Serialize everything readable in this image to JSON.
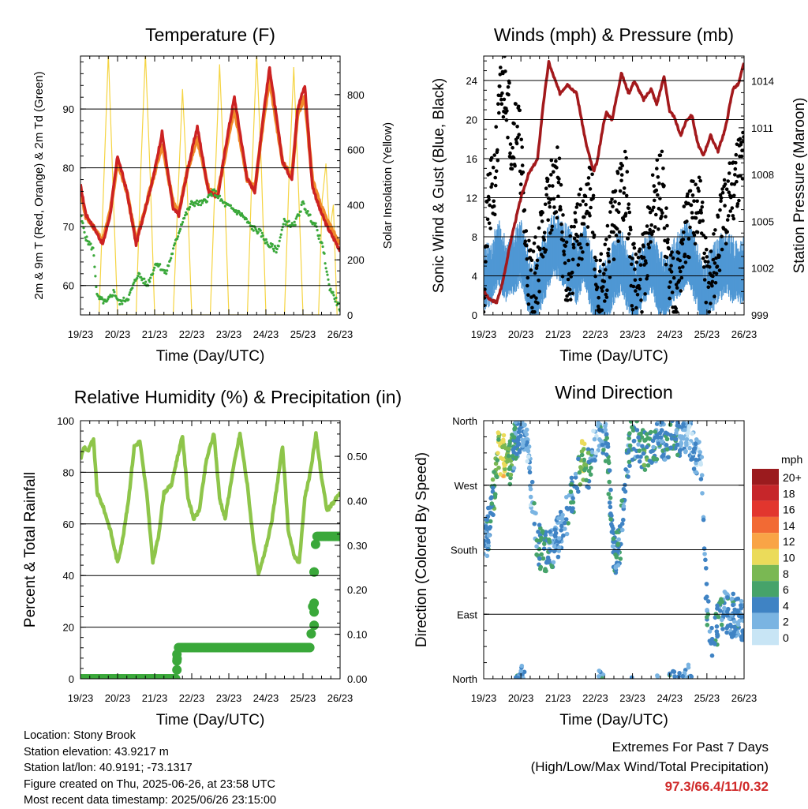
{
  "chart_data": [
    {
      "type": "line",
      "title": "Temperature (F)",
      "xlabel": "Time (Day/UTC)",
      "ylabel": "2m & 9m T (Red, Orange) & 2m Td (Green)",
      "y2label": "Solar Insolation (Yellow)",
      "x_ticks": [
        "19/23",
        "20/23",
        "21/23",
        "22/23",
        "23/23",
        "24/23",
        "25/23",
        "26/23"
      ],
      "xlim": [
        0,
        7
      ],
      "ylim": [
        55,
        99
      ],
      "y_ticks": [
        60,
        70,
        80,
        90
      ],
      "y2lim": [
        0,
        940
      ],
      "y2_ticks": [
        0,
        200,
        400,
        600,
        800
      ],
      "grid": "horizontal",
      "colors": {
        "t2m": "#cc2222",
        "t9m": "#f08a2a",
        "td2m": "#3aa83a",
        "solar": "#f5d442"
      },
      "series": [
        {
          "name": "2m T",
          "axis": "left",
          "x": [
            0,
            0.15,
            0.35,
            0.6,
            0.8,
            1.0,
            1.25,
            1.5,
            1.7,
            1.95,
            2.2,
            2.5,
            2.65,
            2.9,
            3.15,
            3.45,
            3.7,
            3.95,
            4.15,
            4.5,
            4.7,
            4.95,
            5.1,
            5.45,
            5.7,
            5.85,
            6.05,
            6.25,
            6.45,
            6.65,
            7.0
          ],
          "y": [
            77,
            72,
            70,
            67,
            72,
            82,
            76,
            67,
            72,
            78,
            86,
            73,
            72,
            80,
            87,
            76,
            75,
            85,
            92,
            78,
            76,
            90,
            97,
            81,
            78,
            90,
            94,
            77,
            73,
            70,
            66
          ]
        },
        {
          "name": "9m T",
          "axis": "left",
          "x": [
            0,
            0.15,
            0.35,
            0.6,
            0.8,
            1.0,
            1.25,
            1.5,
            1.7,
            1.95,
            2.2,
            2.5,
            2.65,
            2.9,
            3.15,
            3.45,
            3.7,
            3.95,
            4.15,
            4.5,
            4.7,
            4.95,
            5.1,
            5.45,
            5.7,
            5.85,
            6.05,
            6.25,
            6.45,
            6.65,
            7.0
          ],
          "y": [
            76.5,
            71.5,
            70,
            67.5,
            72.5,
            81,
            76,
            67.5,
            72,
            78,
            84,
            74,
            72.5,
            80,
            85,
            76.5,
            75.5,
            84,
            90,
            78,
            76.5,
            89,
            95,
            81,
            78.5,
            89,
            92,
            78,
            74,
            71,
            67
          ]
        },
        {
          "name": "2m Td",
          "axis": "left",
          "x": [
            0,
            0.15,
            0.35,
            0.45,
            0.7,
            0.9,
            1.05,
            1.3,
            1.55,
            1.8,
            2.05,
            2.3,
            2.5,
            2.75,
            3.0,
            3.3,
            3.6,
            3.85,
            4.1,
            4.35,
            4.6,
            4.85,
            5.05,
            5.3,
            5.5,
            5.75,
            6.0,
            6.15,
            6.35,
            6.55,
            6.7,
            6.85,
            7.0
          ],
          "y": [
            72,
            68,
            66,
            58,
            57,
            59,
            57,
            58,
            62,
            60,
            64,
            62,
            66,
            71,
            74,
            74,
            76,
            74,
            73,
            72,
            70,
            69,
            67,
            66,
            71,
            70,
            74,
            72,
            70,
            66,
            60,
            58,
            56
          ]
        },
        {
          "name": "Solar Insolation",
          "axis": "right",
          "x": [
            0.5,
            0.62,
            0.75,
            0.88,
            1.0,
            1.5,
            1.62,
            1.75,
            1.88,
            2.0,
            2.5,
            2.62,
            2.75,
            2.88,
            3.0,
            3.5,
            3.62,
            3.75,
            3.88,
            4.0,
            4.5,
            4.62,
            4.75,
            4.88,
            5.0,
            5.5,
            5.62,
            5.75,
            5.88,
            6.0,
            6.42,
            6.52,
            6.62,
            6.72,
            6.82,
            6.92
          ],
          "y": [
            0,
            450,
            950,
            450,
            0,
            0,
            500,
            950,
            500,
            0,
            0,
            400,
            820,
            450,
            0,
            0,
            450,
            910,
            480,
            0,
            0,
            500,
            950,
            520,
            0,
            0,
            480,
            900,
            450,
            0,
            0,
            420,
            550,
            300,
            400,
            0
          ]
        }
      ]
    },
    {
      "type": "scatter",
      "title": "Winds (mph) & Pressure (mb)",
      "xlabel": "Time (Day/UTC)",
      "ylabel": "Sonic Wind & Gust (Blue, Black)",
      "y2label": "Station Pressure (Maroon)",
      "x_ticks": [
        "19/23",
        "20/23",
        "21/23",
        "22/23",
        "23/23",
        "24/23",
        "25/23",
        "26/23"
      ],
      "xlim": [
        0,
        7
      ],
      "ylim": [
        0,
        26.5
      ],
      "y_ticks": [
        0,
        4,
        8,
        12,
        16,
        20,
        24
      ],
      "y2lim": [
        999,
        1015.6
      ],
      "y2_ticks": [
        999,
        1002,
        1005,
        1008,
        1011,
        1014
      ],
      "grid": "horizontal",
      "colors": {
        "wind": "#4f97d4",
        "gust": "#000000",
        "pressure": "#a3191c"
      },
      "series": [
        {
          "name": "Sonic Wind",
          "axis": "left",
          "x": [
            0,
            0.2,
            0.4,
            0.6,
            0.8,
            1.0,
            1.15,
            1.3,
            1.5,
            1.7,
            1.9,
            2.1,
            2.3,
            2.5,
            2.7,
            2.9,
            3.1,
            3.3,
            3.5,
            3.7,
            3.9,
            4.1,
            4.3,
            4.5,
            4.7,
            4.9,
            5.1,
            5.3,
            5.5,
            5.7,
            5.9,
            6.1,
            6.3,
            6.5,
            6.7,
            7.0
          ],
          "y": [
            3,
            4,
            6,
            4,
            5,
            6,
            4,
            1,
            3,
            5,
            7,
            6,
            5,
            4,
            6,
            3,
            1,
            2,
            4,
            5,
            3,
            2,
            4,
            5,
            3,
            2,
            4,
            5,
            6,
            4,
            1,
            3,
            4,
            5,
            4,
            4
          ]
        },
        {
          "name": "Gust",
          "axis": "left",
          "x": [
            0,
            0.1,
            0.3,
            0.45,
            0.6,
            0.75,
            0.9,
            1.0,
            1.15,
            1.3,
            1.45,
            1.6,
            1.8,
            2.0,
            2.15,
            2.3,
            2.5,
            2.7,
            2.9,
            3.05,
            3.2,
            3.4,
            3.6,
            3.8,
            4.0,
            4.2,
            4.4,
            4.6,
            4.8,
            5.0,
            5.2,
            5.4,
            5.6,
            5.8,
            6.0,
            6.2,
            6.4,
            6.6,
            6.8,
            7.0
          ],
          "y": [
            2,
            10,
            14,
            22,
            24,
            18,
            20,
            16,
            6,
            3,
            5,
            9,
            12,
            14,
            6,
            4,
            8,
            10,
            12,
            3,
            2,
            8,
            11,
            14,
            4,
            3,
            7,
            12,
            13,
            4,
            3,
            8,
            10,
            12,
            3,
            5,
            9,
            12,
            15,
            16
          ]
        },
        {
          "name": "Station Pressure",
          "axis": "right",
          "x": [
            0,
            0.15,
            0.35,
            0.5,
            0.75,
            1.0,
            1.2,
            1.45,
            1.6,
            1.75,
            1.85,
            2.05,
            2.25,
            2.5,
            2.75,
            2.95,
            3.05,
            3.2,
            3.3,
            3.45,
            3.7,
            3.9,
            4.05,
            4.3,
            4.5,
            4.65,
            4.85,
            5.0,
            5.1,
            5.3,
            5.45,
            5.6,
            5.75,
            5.9,
            6.1,
            6.3,
            6.5,
            6.7,
            6.85,
            7.0
          ],
          "y": [
            1000.5,
            1000,
            999.8,
            1001,
            1004,
            1006.5,
            1008,
            1009,
            1012.5,
            1015.2,
            1014.5,
            1013.2,
            1013.8,
            1013.2,
            1010,
            1008.2,
            1008.8,
            1011,
            1012,
            1011.5,
            1014.5,
            1013.2,
            1014,
            1012.8,
            1013.5,
            1012.5,
            1014.3,
            1012,
            1011.8,
            1010.5,
            1011.5,
            1011.8,
            1010,
            1009.2,
            1010.5,
            1009.5,
            1011,
            1013.5,
            1013.8,
            1015.2
          ]
        }
      ]
    },
    {
      "type": "line",
      "title": "Relative Humidity (%) & Precipitation (in)",
      "xlabel": "Time (Day/UTC)",
      "ylabel": "Percent & Total Rainfall",
      "x_ticks": [
        "19/23",
        "20/23",
        "21/23",
        "22/23",
        "23/23",
        "24/23",
        "25/23",
        "26/23"
      ],
      "xlim": [
        0,
        7
      ],
      "ylim": [
        0,
        100
      ],
      "y_ticks": [
        0,
        20,
        40,
        60,
        80,
        100
      ],
      "y2lim": [
        0,
        0.58
      ],
      "y2_ticks": [
        "0.00",
        "0.10",
        "0.20",
        "0.30",
        "0.40",
        "0.50"
      ],
      "grid": "horizontal",
      "colors": {
        "rh": "#8ec54a",
        "precip": "#3aa83a"
      },
      "series": [
        {
          "name": "Relative Humidity",
          "axis": "left",
          "x": [
            0,
            0.1,
            0.2,
            0.35,
            0.45,
            0.6,
            0.8,
            1.0,
            1.15,
            1.3,
            1.45,
            1.6,
            1.8,
            1.95,
            2.1,
            2.25,
            2.45,
            2.6,
            2.75,
            2.9,
            3.05,
            3.2,
            3.4,
            3.6,
            3.75,
            3.9,
            4.1,
            4.3,
            4.5,
            4.65,
            4.8,
            4.95,
            5.15,
            5.3,
            5.45,
            5.6,
            5.75,
            5.9,
            6.05,
            6.2,
            6.35,
            6.5,
            6.65,
            6.8,
            7.0
          ],
          "y": [
            85,
            90,
            88,
            93,
            72,
            67,
            58,
            45,
            55,
            70,
            90,
            92,
            70,
            45,
            55,
            72,
            75,
            85,
            94,
            70,
            62,
            65,
            85,
            95,
            70,
            62,
            80,
            95,
            75,
            55,
            40,
            48,
            60,
            75,
            90,
            58,
            48,
            45,
            70,
            80,
            95,
            78,
            65,
            68,
            72
          ]
        },
        {
          "name": "Total Rainfall",
          "axis": "right",
          "x": [
            0,
            2.5,
            2.58,
            2.62,
            6.2,
            6.25,
            6.3,
            6.35,
            7.0
          ],
          "y": [
            0.0,
            0.0,
            0.0,
            0.07,
            0.07,
            0.14,
            0.24,
            0.32,
            0.32
          ]
        }
      ]
    },
    {
      "type": "scatter",
      "title": "Wind Direction",
      "xlabel": "Time (Day/UTC)",
      "ylabel": "Direction (Colored By Speed)",
      "x_ticks": [
        "19/23",
        "20/23",
        "21/23",
        "22/23",
        "23/23",
        "24/23",
        "25/23",
        "26/23"
      ],
      "xlim": [
        0,
        7
      ],
      "ylim": [
        0,
        360
      ],
      "y_ticks": [
        "North",
        "East",
        "South",
        "West",
        "North"
      ],
      "grid": "horizontal",
      "legend": {
        "title": "mph",
        "placement": "right",
        "labels": [
          "20+",
          "18",
          "16",
          "14",
          "12",
          "10",
          "8",
          "6",
          "4",
          "2",
          "0"
        ],
        "colors": [
          "#9b1b1e",
          "#c6262a",
          "#e2362e",
          "#f26a34",
          "#f9a446",
          "#ebdb5a",
          "#7ab853",
          "#46a36a",
          "#3f83c4",
          "#7ab4e2",
          "#c8e5f5"
        ]
      },
      "series": [
        {
          "name": "Wind Direction",
          "x": [
            0.05,
            0.15,
            0.25,
            0.4,
            0.5,
            0.6,
            0.7,
            0.85,
            1.0,
            1.15,
            1.3,
            1.45,
            1.6,
            1.8,
            1.9,
            2.05,
            2.2,
            2.35,
            2.5,
            2.65,
            2.8,
            2.95,
            3.1,
            3.3,
            3.5,
            3.65,
            3.8,
            3.95,
            4.1,
            4.3,
            4.5,
            4.7,
            4.9,
            5.1,
            5.3,
            5.5,
            5.65,
            5.85,
            6.0,
            6.15,
            6.3,
            6.45,
            6.6,
            6.75,
            6.9
          ],
          "y": [
            190,
            215,
            250,
            320,
            310,
            315,
            300,
            330,
            350,
            340,
            250,
            190,
            175,
            180,
            190,
            200,
            220,
            250,
            270,
            310,
            290,
            320,
            350,
            330,
            175,
            180,
            270,
            330,
            340,
            320,
            320,
            340,
            330,
            345,
            340,
            350,
            320,
            300,
            95,
            60,
            80,
            100,
            85,
            90,
            80
          ],
          "speed": [
            3,
            4,
            6,
            8,
            10,
            9,
            7,
            4,
            3,
            2,
            3,
            4,
            5,
            4,
            3,
            3,
            4,
            4,
            3,
            9,
            6,
            2,
            3,
            4,
            5,
            4,
            3,
            5,
            4,
            6,
            5,
            3,
            4,
            5,
            3,
            2,
            3,
            2,
            4,
            3,
            5,
            4,
            3,
            4,
            3
          ]
        }
      ]
    }
  ],
  "info": {
    "location": "Location: Stony Brook",
    "elevation": "Station elevation: 43.9217 m",
    "latlon": "Station lat/lon: 40.9191; -73.1317",
    "created": "Figure created on Thu, 2025-06-26, at 23:58 UTC",
    "recent": "Most recent data timestamp: 2025/06/26 23:15:00"
  },
  "extremes": {
    "line1": "Extremes For Past 7 Days",
    "line2": "(High/Low/Max Wind/Total Precipitation)",
    "values": "97.3/66.4/11/0.32"
  }
}
